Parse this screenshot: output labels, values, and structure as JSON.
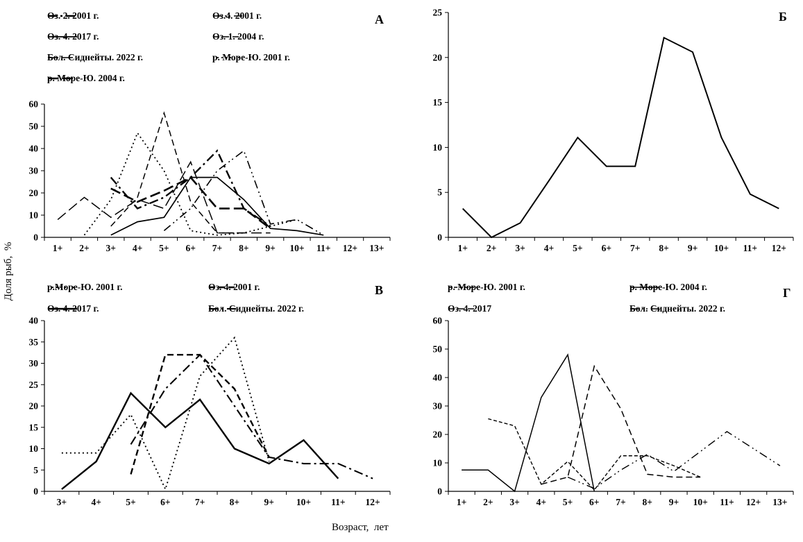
{
  "figure": {
    "y_axis_label": "Доля рыб,  %",
    "x_axis_label": "Возраст,  лет"
  },
  "colors": {
    "line": "#000000",
    "background": "#ffffff"
  },
  "chart_data": [
    {
      "panel_label": "А",
      "type": "line",
      "legend_position": "top",
      "categories": [
        "1+",
        "2+",
        "3+",
        "4+",
        "5+",
        "6+",
        "7+",
        "8+",
        "9+",
        "10+",
        "11+",
        "12+",
        "13+"
      ],
      "ylim": [
        0,
        60
      ],
      "ytick_step": 10,
      "series": [
        {
          "name": "Оз. 2. 2001 г.",
          "line_style": "dashdot",
          "line_width": 2.4,
          "values": [
            null,
            null,
            27,
            13,
            18,
            27,
            39,
            13,
            5,
            null,
            null,
            null,
            null
          ]
        },
        {
          "name": "Оз.4. 2001 г.",
          "line_style": "dashdotdot",
          "line_width": 1.6,
          "values": [
            null,
            null,
            null,
            null,
            3,
            13,
            30,
            39,
            6,
            8,
            1,
            null,
            null
          ]
        },
        {
          "name": "Оз. 4. 2017 г.",
          "line_style": "solid",
          "line_width": 1.7,
          "values": [
            null,
            null,
            1,
            7,
            9,
            27,
            27,
            17,
            4,
            3,
            1,
            null,
            null
          ]
        },
        {
          "name": "Оз. 1. 2004 г.",
          "line_style": "dash",
          "line_width": 1.5,
          "values": [
            null,
            null,
            5,
            18,
            56,
            16,
            2,
            2,
            null,
            null,
            null,
            null,
            null
          ]
        },
        {
          "name": "Бол. Сиднейты. 2022 г.",
          "line_style": "longdash",
          "line_width": 1.5,
          "values": [
            8,
            18,
            9,
            17,
            13,
            34,
            2,
            2,
            2,
            null,
            null,
            null,
            null
          ]
        },
        {
          "name": "р. Море-Ю. 2001 г.",
          "line_style": "dot",
          "line_width": 1.8,
          "values": [
            null,
            1,
            17,
            47,
            30,
            3,
            1,
            2,
            5,
            8,
            null,
            null,
            null
          ]
        },
        {
          "name": "р. Море-Ю. 2004 г.",
          "line_style": "longdash",
          "line_width": 2.6,
          "values": [
            null,
            null,
            22,
            16,
            21,
            27,
            13,
            13,
            4,
            null,
            null,
            null,
            null
          ]
        }
      ]
    },
    {
      "panel_label": "Б",
      "type": "line",
      "legend_position": "none",
      "categories": [
        "1+",
        "2+",
        "3+",
        "4+",
        "5+",
        "6+",
        "7+",
        "8+",
        "9+",
        "10+",
        "11+",
        "12+"
      ],
      "ylim": [
        0,
        25
      ],
      "ytick_step": 5,
      "series": [
        {
          "name": "",
          "line_style": "solid",
          "line_width": 2.0,
          "values": [
            3.2,
            0,
            1.6,
            6.3,
            11.1,
            7.9,
            7.9,
            22.2,
            20.6,
            11.1,
            4.8,
            3.2
          ]
        }
      ]
    },
    {
      "panel_label": "В",
      "type": "line",
      "legend_position": "top",
      "categories": [
        "3+",
        "4+",
        "5+",
        "6+",
        "7+",
        "8+",
        "9+",
        "10+",
        "11+",
        "12+"
      ],
      "ylim": [
        0,
        40
      ],
      "ytick_step": 5,
      "series": [
        {
          "name": "р.Море-Ю. 2001 г.",
          "line_style": "dot",
          "line_width": 1.9,
          "values": [
            9,
            9,
            18,
            0.5,
            27,
            36,
            7,
            null,
            null,
            null
          ]
        },
        {
          "name": "Оз. 4. 2001 г.",
          "line_style": "dash",
          "line_width": 2.4,
          "values": [
            null,
            null,
            4,
            32,
            32,
            24,
            8,
            null,
            null,
            null
          ]
        },
        {
          "name": "Оз. 4. 2017 г.",
          "line_style": "solid",
          "line_width": 2.4,
          "values": [
            0.5,
            7,
            23,
            15,
            21.5,
            10,
            6.5,
            12,
            3,
            null
          ]
        },
        {
          "name": "Бол. Сиднейты. 2022 г.",
          "line_style": "dashdot",
          "line_width": 2.1,
          "values": [
            null,
            null,
            11,
            24,
            32,
            20,
            8,
            6.5,
            6.5,
            3
          ]
        }
      ]
    },
    {
      "panel_label": "Г",
      "type": "line",
      "legend_position": "top",
      "categories": [
        "1+",
        "2+",
        "3+",
        "4+",
        "5+",
        "6+",
        "7+",
        "8+",
        "9+",
        "10+",
        "11+",
        "12+",
        "13+"
      ],
      "ylim": [
        0,
        60
      ],
      "ytick_step": 10,
      "series": [
        {
          "name": "р. Море-Ю. 2001 г.",
          "line_style": "shortdash",
          "line_width": 1.4,
          "values": [
            null,
            25.5,
            23,
            2.5,
            10.5,
            0.5,
            12.5,
            12.5,
            9,
            5,
            null,
            null,
            null
          ]
        },
        {
          "name": "р. Море-Ю. 2004 г.",
          "line_style": "solid",
          "line_width": 1.5,
          "values": [
            7.5,
            7.5,
            0,
            33,
            48,
            0,
            null,
            null,
            null,
            null,
            null,
            null,
            null
          ]
        },
        {
          "name": "Оз. 4. 2017",
          "line_style": "dash",
          "line_width": 1.5,
          "values": [
            null,
            null,
            null,
            2.5,
            5,
            44,
            29,
            6,
            5,
            5,
            null,
            null,
            null
          ]
        },
        {
          "name": "Бол. Сиднейты. 2022 г.",
          "line_style": "dashdotdot",
          "line_width": 1.4,
          "values": [
            null,
            null,
            null,
            null,
            5,
            1,
            7.5,
            13,
            7,
            14,
            21,
            15,
            9
          ]
        }
      ]
    }
  ]
}
